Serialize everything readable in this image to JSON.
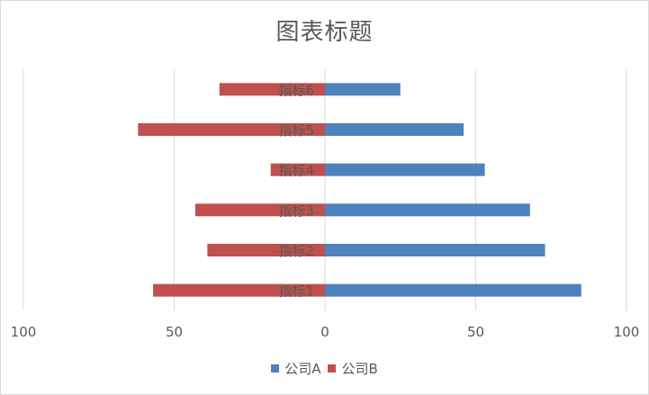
{
  "chart_data": {
    "type": "bar",
    "orientation": "horizontal",
    "layout": "butterfly",
    "title": "图表标题",
    "categories": [
      "指标1",
      "指标2",
      "指标3",
      "指标4",
      "指标5",
      "指标6"
    ],
    "series": [
      {
        "name": "公司A",
        "values": [
          85,
          73,
          68,
          53,
          46,
          25
        ],
        "color": "#4F81BD",
        "side": "right"
      },
      {
        "name": "公司B",
        "values": [
          57,
          39,
          43,
          18,
          62,
          35
        ],
        "color": "#C0504D",
        "side": "left"
      }
    ],
    "xlim": [
      -100,
      100
    ],
    "x_ticks": [
      {
        "value": -100,
        "label": "100"
      },
      {
        "value": -50,
        "label": "50"
      },
      {
        "value": 0,
        "label": "0"
      },
      {
        "value": 50,
        "label": "50"
      },
      {
        "value": 100,
        "label": "100"
      }
    ],
    "xlabel": "",
    "ylabel": "",
    "grid": "vertical",
    "legend_position": "bottom"
  }
}
